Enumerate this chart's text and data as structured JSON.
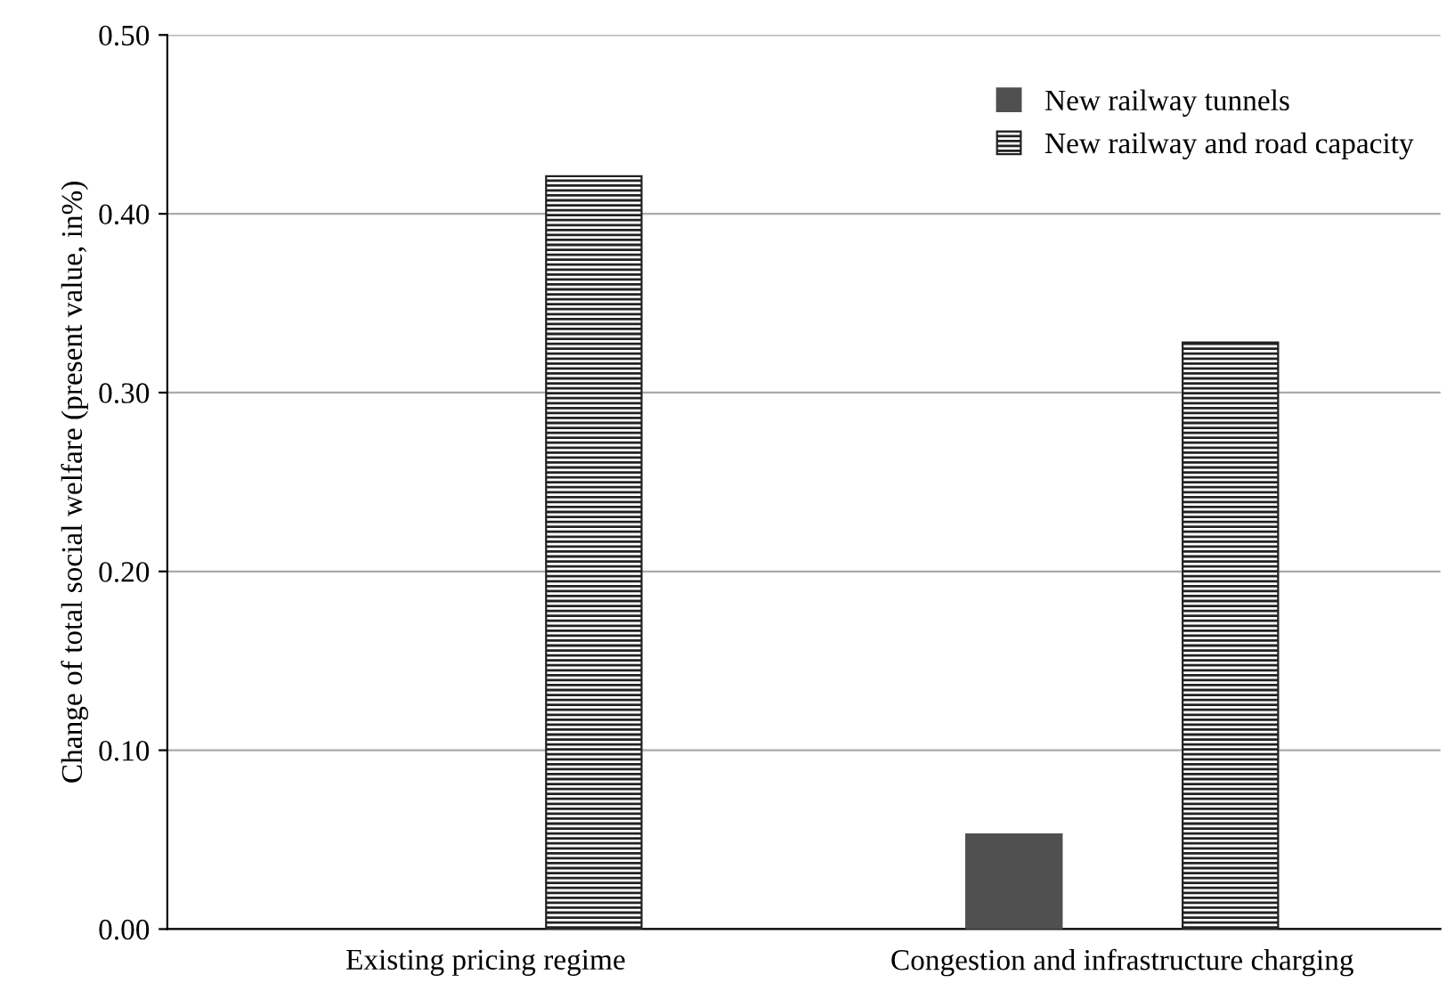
{
  "chart_data": {
    "type": "bar",
    "ylabel": "Change of total social welfare (present value, in%)",
    "categories": [
      "Existing pricing regime",
      "Congestion and infrastructure charging"
    ],
    "series": [
      {
        "name": "New railway tunnels",
        "color": "#505050",
        "values": [
          null,
          0.053
        ]
      },
      {
        "name": "New railway and road capacity",
        "color": "#222222",
        "values": [
          0.421,
          0.328
        ]
      }
    ],
    "ylim": [
      0,
      0.5
    ],
    "yticks": [
      {
        "value": 0,
        "label": "0.00"
      },
      {
        "value": 0.1,
        "label": "0.10"
      },
      {
        "value": 0.2,
        "label": "0.20"
      },
      {
        "value": 0.3,
        "label": "0.30"
      },
      {
        "value": 0.4,
        "label": "0.40"
      },
      {
        "value": 0.5,
        "label": "0.50"
      }
    ],
    "grid": "y",
    "legend": "top right"
  }
}
